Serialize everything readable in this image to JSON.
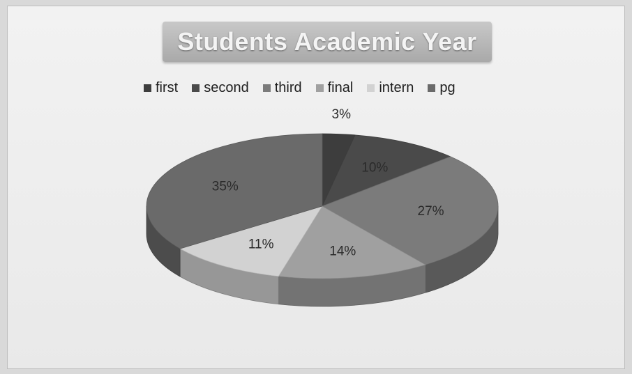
{
  "chart_data": {
    "type": "pie",
    "title": "Students Academic Year",
    "legend_position": "top",
    "categories": [
      "first",
      "second",
      "third",
      "final",
      "intern",
      "pg"
    ],
    "values": [
      3,
      10,
      27,
      14,
      11,
      35
    ],
    "labels": [
      "3%",
      "10%",
      "27%",
      "14%",
      "11%",
      "35%"
    ],
    "colors": [
      "#3d3d3d",
      "#4a4a4a",
      "#7b7b7b",
      "#a0a0a0",
      "#d2d2d2",
      "#6a6a6a"
    ]
  }
}
